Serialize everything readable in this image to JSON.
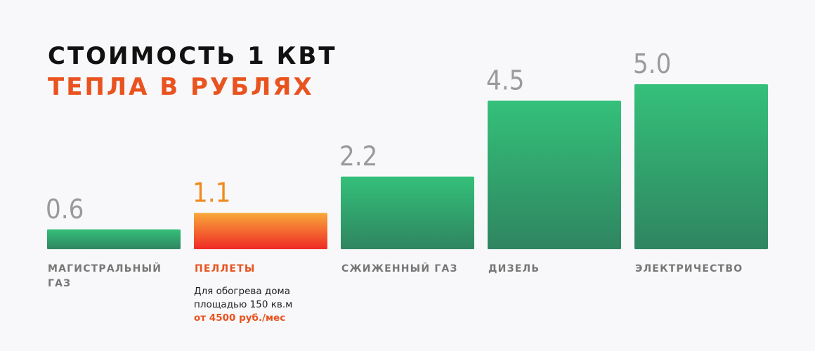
{
  "title": {
    "line1": "СТОИМОСТЬ 1 КВТ",
    "line2": "ТЕПЛА В РУБЛЯХ"
  },
  "chart_data": {
    "type": "bar",
    "title": "СТОИМОСТЬ 1 КВТ ТЕПЛА В РУБЛЯХ",
    "categories": [
      [
        "МАГИСТРАЛЬНЫЙ",
        "ГАЗ"
      ],
      [
        "ПЕЛЛЕТЫ"
      ],
      [
        "СЖИЖЕННЫЙ ГАЗ"
      ],
      [
        "ДИЗЕЛЬ"
      ],
      [
        "ЭЛЕКТРИЧЕСТВО"
      ]
    ],
    "values": [
      0.6,
      1.1,
      2.2,
      4.5,
      5.0
    ],
    "value_labels": [
      "0.6",
      "1.1",
      "2.2",
      "4.5",
      "5.0"
    ],
    "highlight_index": 1,
    "ylim": [
      0,
      5.0
    ],
    "grid": false,
    "legend": "none"
  },
  "note": {
    "line1": "Для обогрева дома",
    "line2": "площадью 150 кв.м",
    "line3": "от 4500 руб./мес"
  },
  "colors": {
    "title_dark": "#111111",
    "title_accent": "#e9531f",
    "bar_top": "#34c07a",
    "bar_bottom": "#2f8560",
    "highlight_top": "#f8a83a",
    "highlight_bottom": "#ef2a26",
    "value_gray": "#9a9a9a",
    "highlight_value": "#f08a1d",
    "label_gray": "#777777",
    "label_highlight": "#e9531f"
  }
}
